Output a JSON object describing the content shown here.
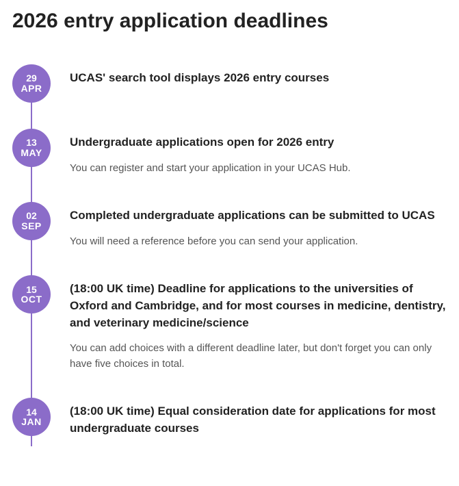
{
  "page_title": "2026 entry application deadlines",
  "colors": {
    "badge_bg": "#8b6cc9",
    "badge_text": "#ffffff",
    "line": "#8b6cc9",
    "title_text": "#222222",
    "body_text": "#555555",
    "page_bg": "#ffffff"
  },
  "timeline": [
    {
      "day": "29",
      "month": "APR",
      "title": "UCAS' search tool displays 2026 entry courses",
      "desc": ""
    },
    {
      "day": "13",
      "month": "MAY",
      "title": "Undergraduate applications open for 2026 entry",
      "desc": "You can register and start your application in your UCAS Hub."
    },
    {
      "day": "02",
      "month": "SEP",
      "title": "Completed undergraduate applications can be submitted to UCAS",
      "desc": "You will need a reference before you can send your application."
    },
    {
      "day": "15",
      "month": "OCT",
      "title": "(18:00 UK time) Deadline for applications to the universities of Oxford and Cambridge, and for most courses in medicine, dentistry, and veterinary medicine/science",
      "desc": "You can add choices with a different deadline later, but don't forget you can only have five choices in total."
    },
    {
      "day": "14",
      "month": "JAN",
      "title": "(18:00 UK time) Equal consideration date for applications for most undergraduate courses",
      "desc": ""
    }
  ]
}
